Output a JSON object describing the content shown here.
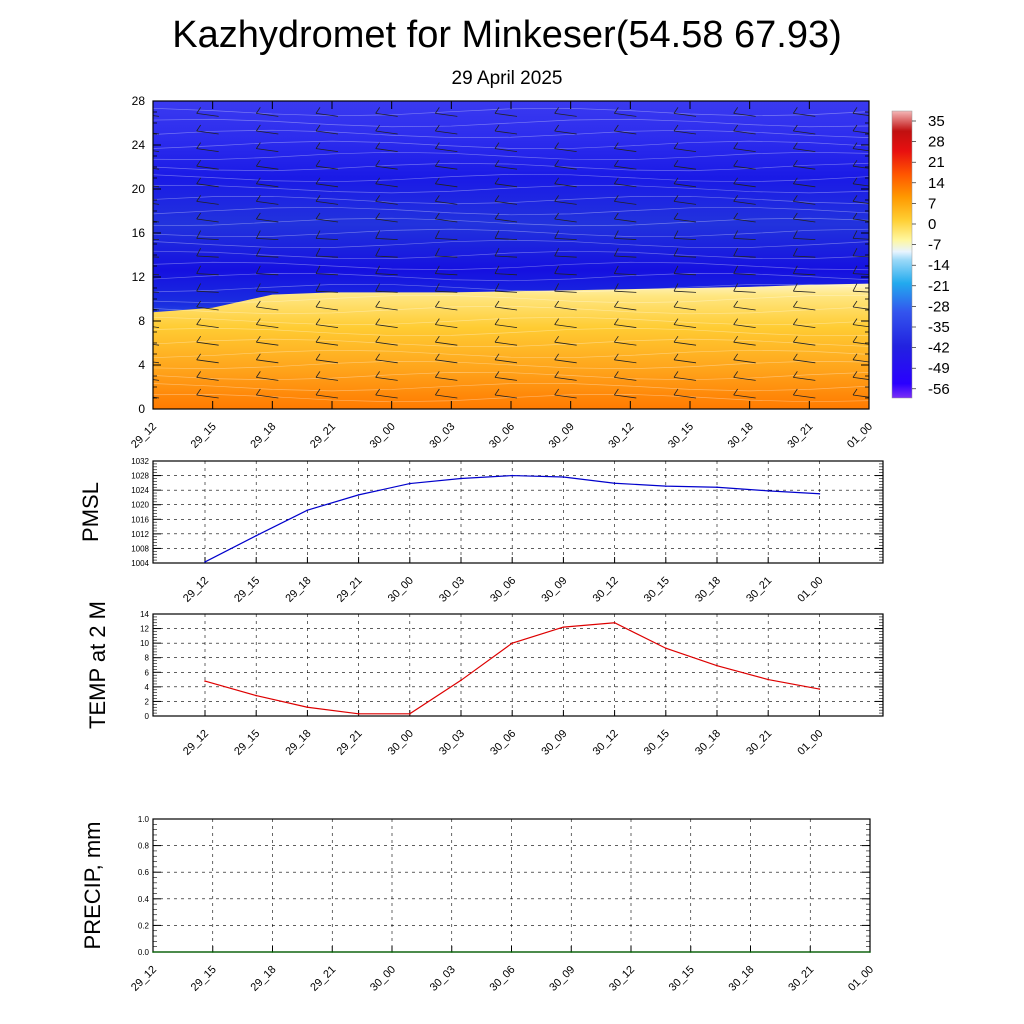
{
  "title": "Kazhydromet for Minkeser(54.58 67.93)",
  "subtitle": "29 April 2025",
  "colors": {
    "pmsl_line": "#0000cc",
    "temp_line": "#dd0000",
    "precip_line": "#006400",
    "grid": "#000000"
  },
  "chart_data": [
    {
      "type": "heatmap",
      "title": "",
      "x_ticks": [
        "29_12",
        "29_15",
        "29_18",
        "29_21",
        "30_00",
        "30_03",
        "30_06",
        "30_09",
        "30_12",
        "30_15",
        "30_18",
        "30_21",
        "01_00"
      ],
      "y_ticks": [
        "0",
        "4",
        "8",
        "12",
        "16",
        "20",
        "24",
        "28"
      ],
      "ylim": [
        0,
        28
      ],
      "colorbar": {
        "labels": [
          "35",
          "28",
          "21",
          "14",
          "7",
          "0",
          "-7",
          "-14",
          "-21",
          "-28",
          "-35",
          "-42",
          "-49",
          "-56"
        ],
        "range": [
          -63,
          42
        ]
      },
      "freezing_level": [
        8.8,
        9.2,
        10.4,
        10.6,
        10.6,
        10.6,
        10.7,
        10.8,
        10.9,
        11.0,
        11.1,
        11.3,
        11.4
      ],
      "wind_barbs": true
    },
    {
      "type": "line",
      "ylabel": "PMSL",
      "y_ticks": [
        "1004",
        "1008",
        "1012",
        "1016",
        "1020",
        "1024",
        "1028",
        "1032"
      ],
      "ylim": [
        1004,
        1032
      ],
      "categories": [
        "29_12",
        "29_15",
        "29_18",
        "29_21",
        "30_00",
        "30_03",
        "30_06",
        "30_09",
        "30_12",
        "30_15",
        "30_18",
        "30_21",
        "01_00"
      ],
      "values": [
        1004.3,
        1011.5,
        1018.5,
        1022.7,
        1025.8,
        1027.2,
        1028.0,
        1027.6,
        1025.9,
        1025.1,
        1024.8,
        1023.8,
        1023.0
      ],
      "grid": true
    },
    {
      "type": "line",
      "ylabel": "TEMP at 2 M",
      "y_ticks": [
        "0",
        "2",
        "4",
        "6",
        "8",
        "10",
        "12",
        "14"
      ],
      "ylim": [
        0,
        14
      ],
      "categories": [
        "29_12",
        "29_15",
        "29_18",
        "29_21",
        "30_00",
        "30_03",
        "30_06",
        "30_09",
        "30_12",
        "30_15",
        "30_18",
        "30_21",
        "01_00"
      ],
      "values": [
        4.8,
        2.8,
        1.2,
        0.3,
        0.3,
        4.9,
        10.0,
        12.2,
        12.8,
        9.3,
        6.9,
        5.0,
        3.7
      ],
      "grid": true
    },
    {
      "type": "line",
      "ylabel": "PRECIP, mm",
      "y_ticks": [
        "0.0",
        "0.2",
        "0.4",
        "0.6",
        "0.8",
        "1.0"
      ],
      "ylim": [
        0,
        1
      ],
      "x_ticks": [
        "29_12",
        "29_15",
        "29_18",
        "29_21",
        "30_00",
        "30_03",
        "30_06",
        "30_09",
        "30_12",
        "30_15",
        "30_18",
        "30_21",
        "01_00"
      ],
      "values": [
        0,
        0,
        0,
        0,
        0,
        0,
        0,
        0,
        0,
        0,
        0,
        0,
        0
      ],
      "grid": true
    }
  ]
}
